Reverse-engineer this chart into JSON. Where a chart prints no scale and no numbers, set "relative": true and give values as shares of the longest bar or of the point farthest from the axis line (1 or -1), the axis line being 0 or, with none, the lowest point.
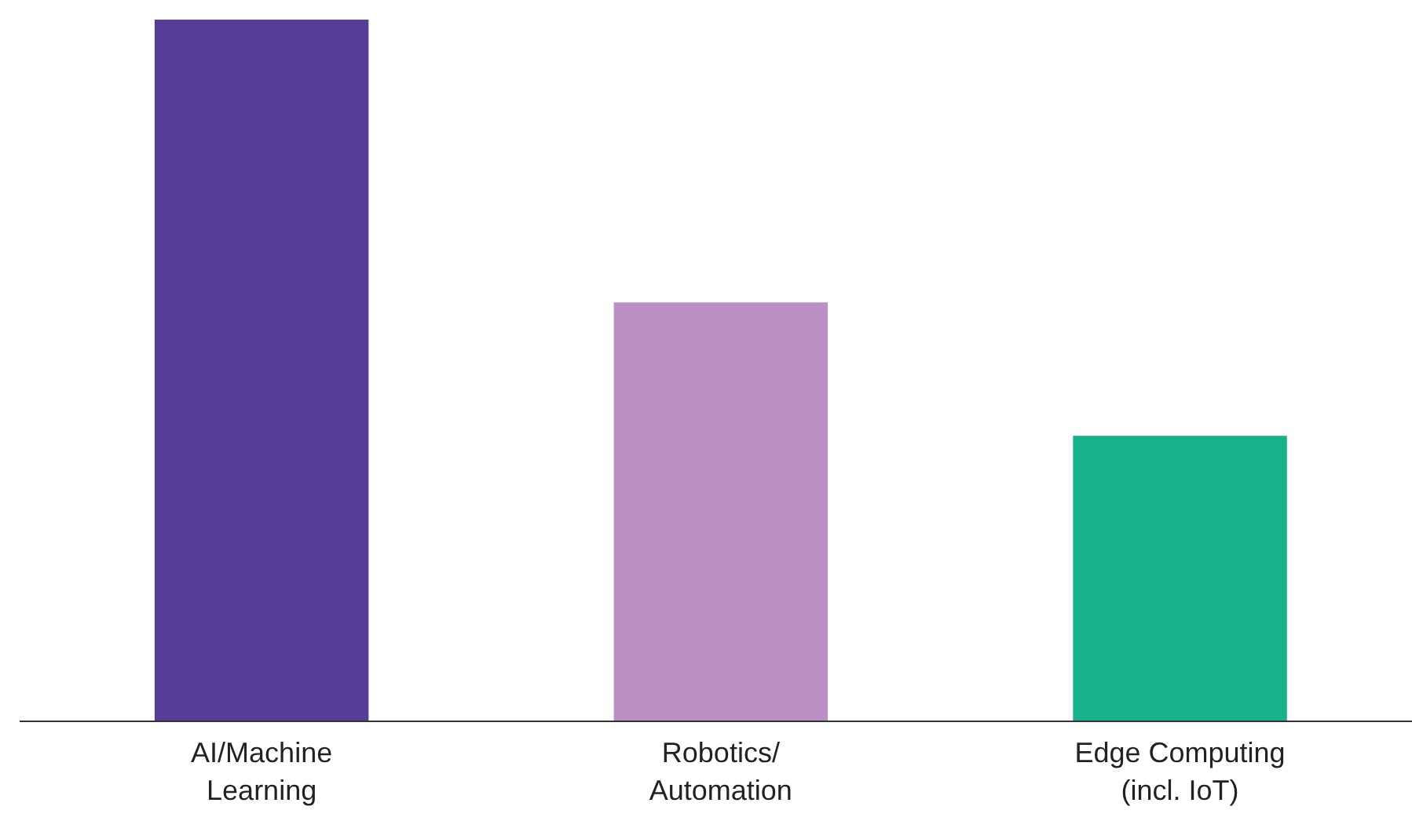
{
  "chart_data": {
    "type": "bar",
    "relative": true,
    "grid": false,
    "categories": [
      "AI/Machine\nLearning",
      "Robotics/\nAutomation",
      "Edge Computing\n(incl. IoT)"
    ],
    "values": [
      1,
      0.597,
      0.407
    ],
    "colors": [
      "#563d97",
      "#bb90c4",
      "#19b08c"
    ]
  }
}
